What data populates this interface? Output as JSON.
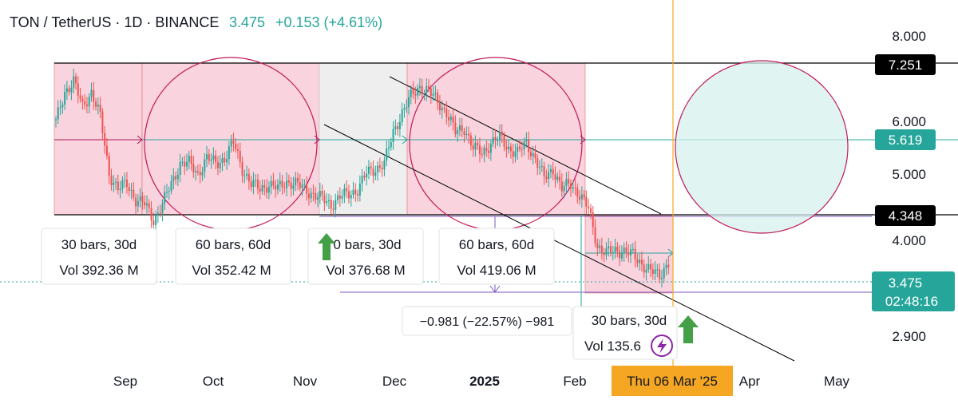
{
  "header": {
    "symbol": "TON / TetherUS · 1D · BINANCE",
    "price": "3.475",
    "change": "+0.153 (+4.61%)"
  },
  "colors": {
    "up": "#26a69a",
    "down": "#ef5350",
    "pink_zone": "#f8c8d4",
    "gray_zone": "#eeeeee",
    "circle": "#c2185b",
    "teal": "#26a69a",
    "purple": "#7e57c2",
    "cursor": "#f5a623",
    "date_badge": "#f5a623"
  },
  "chart_data": {
    "type": "candlestick",
    "symbol": "TON / TetherUS",
    "interval": "1D",
    "exchange": "BINANCE",
    "last": 3.475,
    "y_ticks": [
      "8.000",
      "6.000",
      "5.000",
      "4.000",
      "2.900"
    ],
    "x_ticks": [
      "Sep",
      "Oct",
      "Nov",
      "Dec",
      "2025",
      "Feb",
      "Apr",
      "May"
    ],
    "price_badges": [
      {
        "label": "7.251",
        "style": "dark",
        "value": 7.251
      },
      {
        "label": "5.619",
        "style": "teal",
        "value": 5.619
      },
      {
        "label": "4.348",
        "style": "dark",
        "value": 4.348
      },
      {
        "label": "3.475",
        "style": "teal",
        "value": 3.475
      },
      {
        "label": "02:48:16",
        "style": "teal-sub",
        "value": 3.35
      }
    ],
    "crosshair_date": "Thu 06 Mar '25",
    "range_high": 7.251,
    "range_mid": 5.619,
    "range_low": 4.348,
    "close_path": [
      [
        0,
        6.3
      ],
      [
        4,
        6.9
      ],
      [
        8,
        7.1
      ],
      [
        12,
        6.6
      ],
      [
        16,
        6.9
      ],
      [
        20,
        6.4
      ],
      [
        24,
        5.3
      ],
      [
        28,
        5.0
      ],
      [
        32,
        5.1
      ],
      [
        36,
        4.8
      ],
      [
        40,
        4.7
      ],
      [
        44,
        4.4
      ],
      [
        48,
        4.7
      ],
      [
        52,
        5.1
      ],
      [
        56,
        5.5
      ],
      [
        60,
        5.5
      ],
      [
        64,
        5.3
      ],
      [
        68,
        5.6
      ],
      [
        72,
        5.5
      ],
      [
        76,
        5.6
      ],
      [
        80,
        5.9
      ],
      [
        84,
        5.4
      ],
      [
        88,
        5.1
      ],
      [
        92,
        5.0
      ],
      [
        96,
        5.1
      ],
      [
        100,
        5.0
      ],
      [
        104,
        5.15
      ],
      [
        108,
        5.1
      ],
      [
        112,
        5.0
      ],
      [
        116,
        4.9
      ],
      [
        120,
        4.8
      ],
      [
        124,
        4.7
      ],
      [
        128,
        4.85
      ],
      [
        132,
        4.9
      ],
      [
        136,
        5.0
      ],
      [
        140,
        5.3
      ],
      [
        144,
        5.4
      ],
      [
        148,
        5.5
      ],
      [
        152,
        6.1
      ],
      [
        156,
        6.5
      ],
      [
        160,
        6.8
      ],
      [
        164,
        7.0
      ],
      [
        168,
        6.9
      ],
      [
        172,
        6.7
      ],
      [
        176,
        6.5
      ],
      [
        180,
        6.1
      ],
      [
        184,
        6.2
      ],
      [
        188,
        5.8
      ],
      [
        192,
        5.7
      ],
      [
        196,
        5.9
      ],
      [
        200,
        6.0
      ],
      [
        204,
        5.8
      ],
      [
        208,
        5.7
      ],
      [
        212,
        5.9
      ],
      [
        216,
        5.6
      ],
      [
        220,
        5.2
      ],
      [
        224,
        5.4
      ],
      [
        228,
        5.0
      ],
      [
        232,
        5.1
      ],
      [
        236,
        4.9
      ],
      [
        240,
        4.6
      ],
      [
        244,
        3.9
      ],
      [
        248,
        3.75
      ],
      [
        252,
        3.8
      ],
      [
        256,
        3.8
      ],
      [
        260,
        3.7
      ],
      [
        264,
        3.55
      ],
      [
        268,
        3.4
      ],
      [
        272,
        3.3
      ],
      [
        276,
        3.6
      ]
    ],
    "zones": [
      {
        "kind": "pink",
        "stats": [
          "30 bars, 30d",
          "Vol 392.36 M"
        ]
      },
      {
        "kind": "pink",
        "stats": [
          "60 bars, 60d",
          "Vol 352.42 M"
        ]
      },
      {
        "kind": "gray",
        "stats": [
          "0 bars, 30d",
          "Vol 376.68 M"
        ]
      },
      {
        "kind": "pink",
        "stats": [
          "60 bars, 60d",
          "Vol 419.06 M"
        ]
      },
      {
        "kind": "pink",
        "stats": [
          "30 bars, 30d",
          "Vol 135.6"
        ]
      }
    ],
    "measure_label": "−0.981 (−22.57%) −981",
    "annotations": [
      "up-arrow",
      "up-arrow",
      "lightning-badge"
    ]
  }
}
